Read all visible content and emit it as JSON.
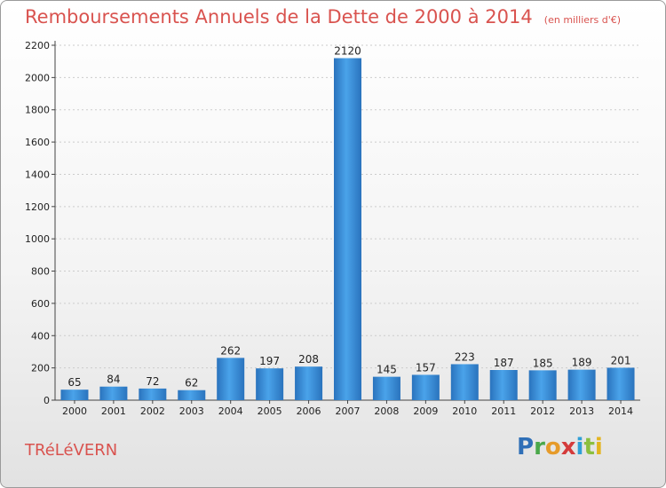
{
  "title": "Remboursements Annuels de la Dette de 2000 à 2014",
  "unit_label": "(en milliers d'€)",
  "commune": "TRéLéVERN",
  "brand": "Proxiti",
  "colors": {
    "bar": "#3a8fdc",
    "title": "#d9534f",
    "grid": "#cccccc"
  },
  "chart_data": {
    "type": "bar",
    "categories": [
      "2000",
      "2001",
      "2002",
      "2003",
      "2004",
      "2005",
      "2006",
      "2007",
      "2008",
      "2009",
      "2010",
      "2011",
      "2012",
      "2013",
      "2014"
    ],
    "values": [
      65,
      84,
      72,
      62,
      262,
      197,
      208,
      2120,
      145,
      157,
      223,
      187,
      185,
      189,
      201
    ],
    "ylim": [
      0,
      2200
    ],
    "yticks": [
      0,
      200,
      400,
      600,
      800,
      1000,
      1200,
      1400,
      1600,
      1800,
      2000,
      2200
    ],
    "grid": true,
    "xlabel": "",
    "ylabel": ""
  }
}
